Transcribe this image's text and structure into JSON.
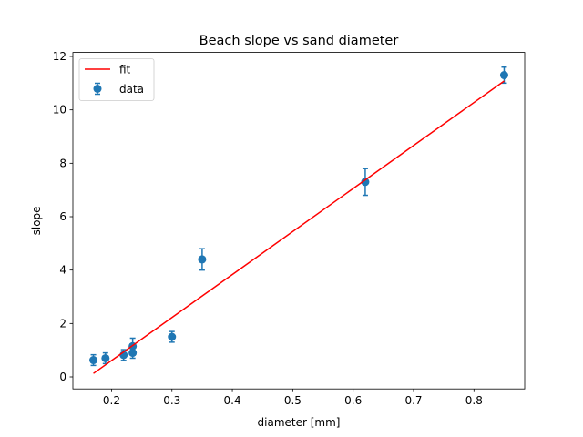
{
  "chart_data": {
    "type": "scatter",
    "title": "Beach slope vs sand diameter",
    "xlabel": "diameter [mm]",
    "ylabel": "slope",
    "xlim": [
      0.136,
      0.884
    ],
    "ylim": [
      -0.45,
      12.15
    ],
    "xticks": [
      0.2,
      0.3,
      0.4,
      0.5,
      0.6,
      0.7,
      0.8
    ],
    "xtick_labels": [
      "0.2",
      "0.3",
      "0.4",
      "0.5",
      "0.6",
      "0.7",
      "0.8"
    ],
    "yticks": [
      0,
      2,
      4,
      6,
      8,
      10,
      12
    ],
    "ytick_labels": [
      "0",
      "2",
      "4",
      "6",
      "8",
      "10",
      "12"
    ],
    "grid": false,
    "legend": {
      "position": "upper left",
      "entries": [
        "fit",
        "data"
      ]
    },
    "series": [
      {
        "name": "data",
        "kind": "errorbar",
        "color": "#1f77b4",
        "x": [
          0.17,
          0.19,
          0.22,
          0.235,
          0.235,
          0.3,
          0.35,
          0.62,
          0.85
        ],
        "y": [
          0.63,
          0.7,
          0.82,
          0.9,
          1.15,
          1.5,
          4.4,
          7.3,
          11.3
        ],
        "yerr": [
          0.2,
          0.2,
          0.2,
          0.2,
          0.3,
          0.2,
          0.4,
          0.5,
          0.3
        ]
      },
      {
        "name": "fit",
        "kind": "line",
        "color": "#ff0000",
        "x": [
          0.17,
          0.85
        ],
        "y": [
          0.13,
          11.08
        ]
      }
    ]
  }
}
